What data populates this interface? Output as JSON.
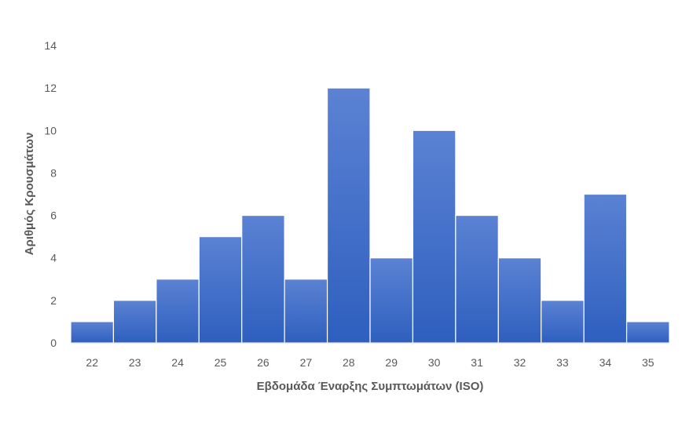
{
  "chart_data": {
    "type": "bar",
    "title": "",
    "xlabel": "Εβδομάδα Έναρξης Συμπτωμάτων (ISO)",
    "ylabel": "Αριθμός Κρουσμάτων",
    "categories": [
      "22",
      "23",
      "24",
      "25",
      "26",
      "27",
      "28",
      "29",
      "30",
      "31",
      "32",
      "33",
      "34",
      "35"
    ],
    "values": [
      1,
      2,
      3,
      5,
      6,
      3,
      12,
      4,
      10,
      6,
      4,
      2,
      7,
      1
    ],
    "ylim": [
      0,
      14
    ],
    "yticks": [
      "0",
      "2",
      "4",
      "6",
      "8",
      "10",
      "12",
      "14"
    ],
    "grid": false,
    "legend": "none",
    "bar_color": "#4472c4"
  }
}
